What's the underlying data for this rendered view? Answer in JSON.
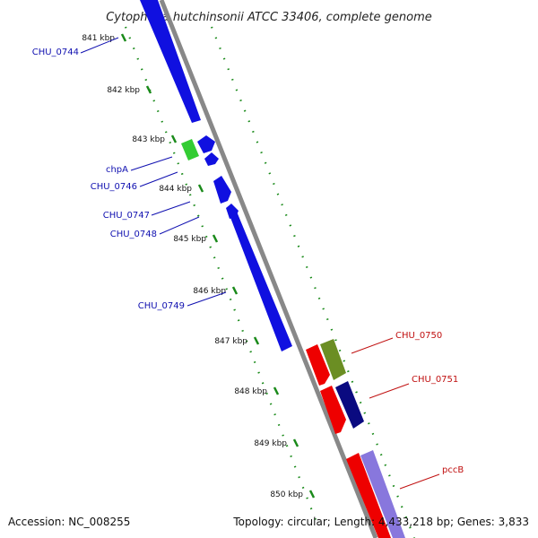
{
  "title": "Cytophaga hutchinsonii ATCC 33406, complete genome",
  "footer": {
    "accession": "Accession: NC_008255",
    "topology": "Topology: circular; Length: 4,433,218 bp; Genes: 3,833"
  },
  "ticks": [
    "841 kbp",
    "842 kbp",
    "843 kbp",
    "844 kbp",
    "845 kbp",
    "846 kbp",
    "847 kbp",
    "848 kbp",
    "849 kbp",
    "850 kbp"
  ],
  "gene_labels": [
    {
      "text": "CHU_0744",
      "side": "left"
    },
    {
      "text": "chpA",
      "side": "left"
    },
    {
      "text": "CHU_0746",
      "side": "left"
    },
    {
      "text": "CHU_0747",
      "side": "left"
    },
    {
      "text": "CHU_0748",
      "side": "left"
    },
    {
      "text": "CHU_0749",
      "side": "left"
    },
    {
      "text": "CHU_0750",
      "side": "right"
    },
    {
      "text": "CHU_0751",
      "side": "right"
    },
    {
      "text": "pccB",
      "side": "right"
    }
  ],
  "colors": {
    "backbone": "#888888",
    "tick": "#1a8a1a",
    "gene_blue": "#1010e0",
    "gene_green": "#33cc33",
    "gene_red": "#ee0000",
    "gene_olive": "#6b8e23",
    "gene_navy": "#0a0a80",
    "gene_lavender": "#8877dd",
    "label_left": "#1010b0",
    "label_right": "#c01010"
  }
}
